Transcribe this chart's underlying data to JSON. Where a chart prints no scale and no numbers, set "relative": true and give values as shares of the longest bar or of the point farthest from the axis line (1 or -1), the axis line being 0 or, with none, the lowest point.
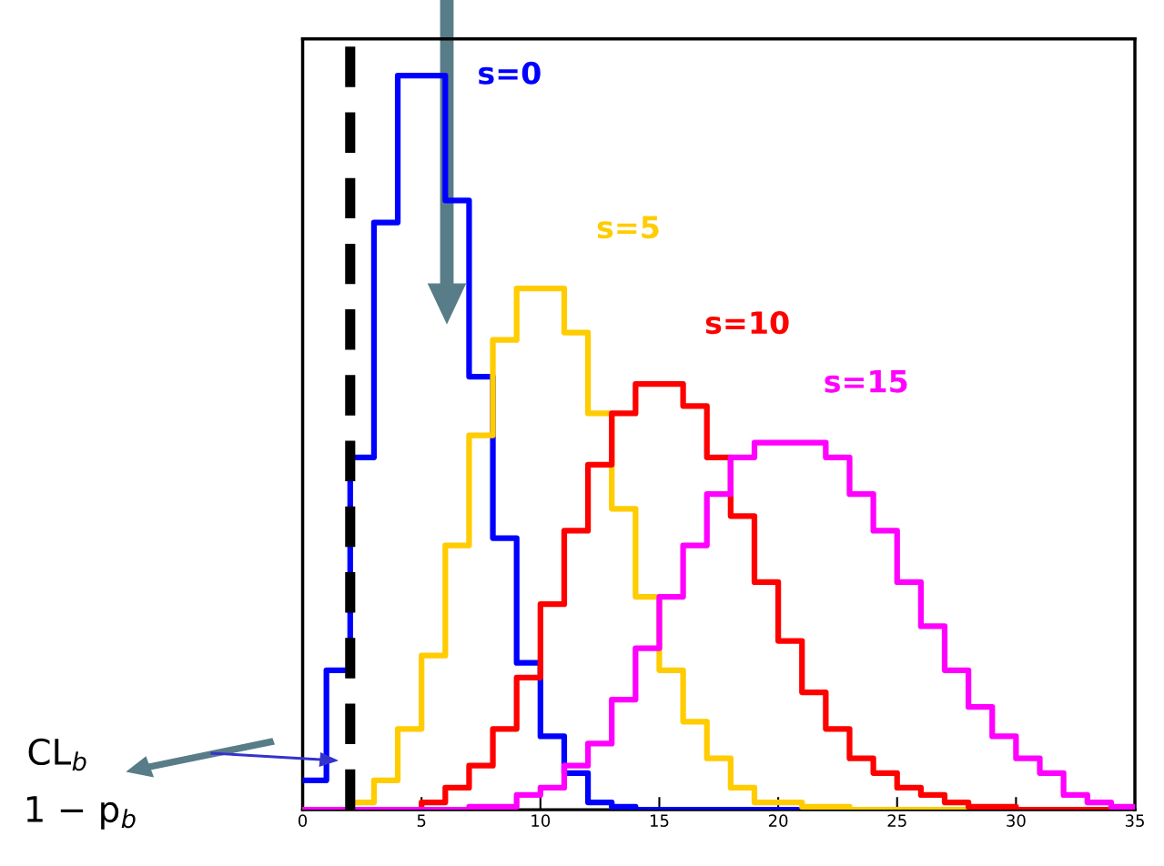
{
  "chart_data": {
    "type": "step",
    "relative": true,
    "tick_labels": "x",
    "x": [
      0,
      1,
      2,
      3,
      4,
      5,
      6,
      7,
      8,
      9,
      10,
      11,
      12,
      13,
      14,
      15,
      16,
      17,
      18,
      19,
      20,
      21,
      22,
      23,
      24,
      25,
      26,
      27,
      28,
      29,
      30,
      31,
      32,
      33,
      34,
      35
    ],
    "series": [
      {
        "name": "s=0",
        "color": "#0000ff",
        "values": [
          0.04,
          0.19,
          0.48,
          0.8,
          1,
          1,
          0.83,
          0.59,
          0.37,
          0.2,
          0.1,
          0.05,
          0.01,
          0.004,
          0,
          0,
          0,
          0,
          0,
          0,
          0,
          0,
          0,
          null,
          null,
          null,
          null,
          null,
          null,
          null,
          null,
          null,
          null,
          null,
          null,
          null
        ]
      },
      {
        "name": "s=5",
        "color": "#ffcc00",
        "values": [
          0,
          0,
          0.01,
          0.04,
          0.11,
          0.21,
          0.36,
          0.51,
          0.64,
          0.71,
          0.71,
          0.65,
          0.54,
          0.41,
          0.29,
          0.19,
          0.12,
          0.07,
          0.03,
          0.01,
          0.01,
          0.004,
          0.004,
          0,
          0,
          0,
          0,
          0,
          0,
          0,
          null,
          null,
          null,
          null,
          null,
          null
        ]
      },
      {
        "name": "s=10",
        "color": "#ff0000",
        "values": [
          null,
          null,
          null,
          null,
          0,
          0.01,
          0.03,
          0.06,
          0.11,
          0.18,
          0.28,
          0.38,
          0.47,
          0.54,
          0.58,
          0.58,
          0.55,
          0.48,
          0.4,
          0.31,
          0.23,
          0.16,
          0.11,
          0.07,
          0.05,
          0.03,
          0.02,
          0.01,
          0.004,
          0.004,
          0,
          0,
          0,
          0,
          0,
          0
        ]
      },
      {
        "name": "s=15",
        "color": "#ff00ff",
        "values": [
          0,
          0,
          0,
          0,
          0,
          0,
          0,
          0.004,
          0.004,
          0.02,
          0.03,
          0.06,
          0.09,
          0.15,
          0.22,
          0.29,
          0.36,
          0.43,
          0.48,
          0.5,
          0.5,
          0.5,
          0.48,
          0.43,
          0.38,
          0.31,
          0.25,
          0.19,
          0.14,
          0.1,
          0.07,
          0.05,
          0.02,
          0.01,
          0.004,
          0.004
        ]
      }
    ],
    "xlim": [
      0,
      35
    ],
    "xticks": [
      0,
      5,
      10,
      15,
      20,
      25,
      30,
      35
    ],
    "ref_lines": [
      {
        "axis": "x",
        "value": 2,
        "color": "#000000",
        "line_style": "dashed"
      }
    ],
    "annotations": [
      "CL$_{b}$",
      "1 − p$_{b}$"
    ]
  }
}
